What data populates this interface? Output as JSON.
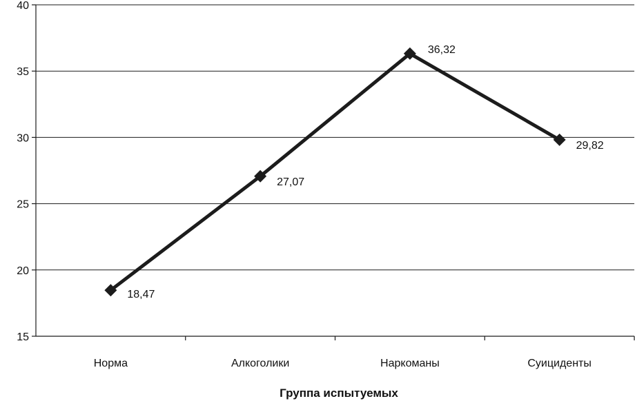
{
  "chart_data": {
    "type": "line",
    "categories": [
      "Норма",
      "Алкоголики",
      "Наркоманы",
      "Суициденты"
    ],
    "series": [
      {
        "values": [
          18.47,
          27.07,
          36.32,
          29.82
        ],
        "labels": [
          "18,47",
          "27,07",
          "36,32",
          "29,82"
        ]
      }
    ],
    "y_ticks": [
      "15",
      "20",
      "25",
      "30",
      "35",
      "40"
    ],
    "y_tick_values": [
      15,
      20,
      25,
      30,
      35,
      40
    ],
    "ylim": [
      15,
      40
    ],
    "xlabel": "Группа испытуемых",
    "ylabel": "",
    "title": "",
    "grid": true,
    "legend": "none",
    "line_color": "#1c1c1c"
  }
}
